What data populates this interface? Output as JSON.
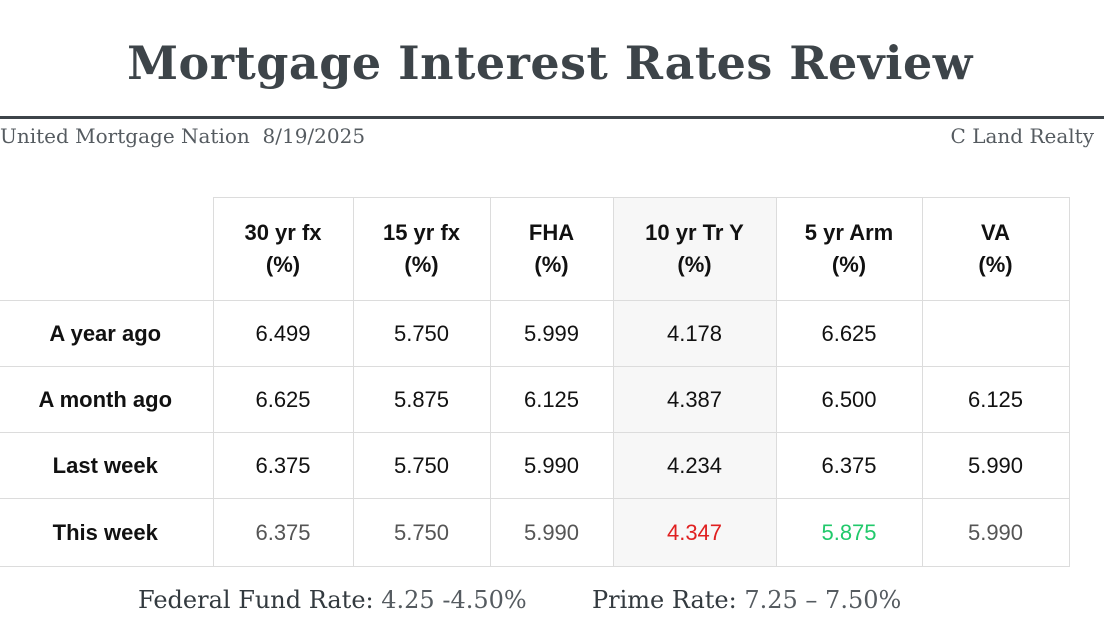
{
  "title": "Mortgage Interest Rates Review",
  "meta": {
    "source_date": "United Mortgage Nation  8/19/2025",
    "company": "C Land Realty"
  },
  "table": {
    "columns": [
      {
        "line1": "30 yr fx",
        "line2": "(%)"
      },
      {
        "line1": "15 yr fx",
        "line2": "(%)"
      },
      {
        "line1": "FHA",
        "line2": "(%)"
      },
      {
        "line1": "10 yr Tr Y",
        "line2": "(%)"
      },
      {
        "line1": "5 yr Arm",
        "line2": "(%)"
      },
      {
        "line1": "VA",
        "line2": "(%)"
      }
    ],
    "rows": [
      {
        "label": "A year ago",
        "values": [
          "6.499",
          "5.750",
          "5.999",
          "4.178",
          "6.625",
          ""
        ]
      },
      {
        "label": "A month ago",
        "values": [
          "6.625",
          "5.875",
          "6.125",
          "4.387",
          "6.500",
          "6.125"
        ]
      },
      {
        "label": "Last week",
        "values": [
          "6.375",
          "5.750",
          "5.990",
          "4.234",
          "6.375",
          "5.990"
        ]
      },
      {
        "label": "This week",
        "values": [
          "6.375",
          "5.750",
          "5.990",
          "4.347",
          "5.875",
          "5.990"
        ]
      }
    ]
  },
  "colors": {
    "increase": "#e02020",
    "decrease": "#21c96b",
    "highlight_column_bg": "#f7f7f7"
  },
  "footer": {
    "fed_label": "Federal Fund Rate:",
    "fed_value": "4.25 -4.50%",
    "prime_label": "Prime Rate:",
    "prime_value": "7.25 – 7.50%"
  }
}
